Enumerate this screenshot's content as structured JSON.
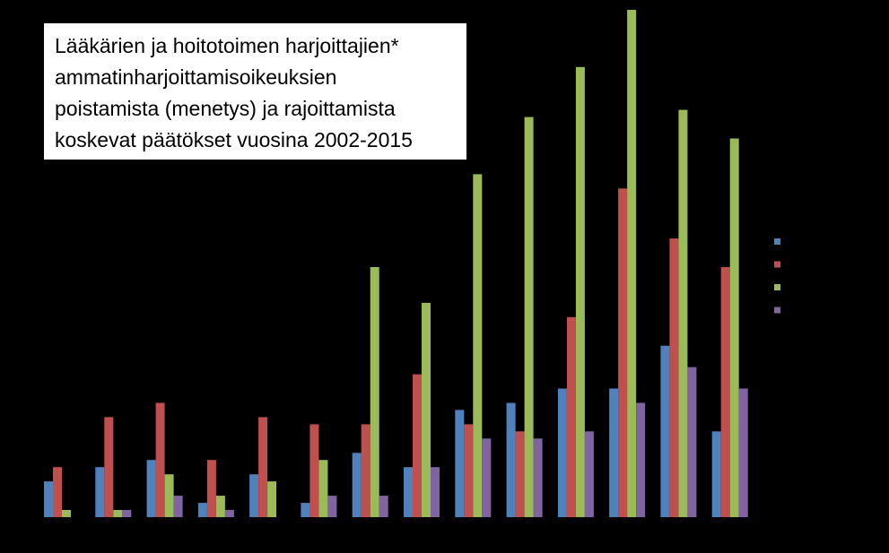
{
  "chart_data": {
    "type": "bar",
    "title_lines": [
      "Lääkärien ja hoitotoimen harjoittajien*",
      "ammatinharjoittamisoikeuksien",
      "poistamista (menetys) ja rajoittamista",
      "koskevat päätökset vuosina 2002-2015"
    ],
    "xlabel": "",
    "ylabel": "",
    "ylim": [
      0,
      70
    ],
    "grid": false,
    "legend_position": "right",
    "background": "#000000",
    "series": [
      {
        "color": "#4f81bd",
        "values": [
          5,
          7,
          8,
          2,
          6,
          2,
          9,
          7,
          15,
          16,
          18,
          18,
          24,
          12
        ]
      },
      {
        "color": "#c0504d",
        "values": [
          7,
          14,
          16,
          8,
          14,
          13,
          13,
          20,
          13,
          12,
          28,
          46,
          39,
          35
        ]
      },
      {
        "color": "#9bbb59",
        "values": [
          1,
          1,
          6,
          3,
          5,
          8,
          35,
          30,
          48,
          56,
          63,
          71,
          57,
          53
        ]
      },
      {
        "color": "#8064a2",
        "values": [
          0,
          1,
          3,
          1,
          0,
          3,
          3,
          7,
          11,
          11,
          12,
          16,
          21,
          18
        ]
      }
    ]
  }
}
